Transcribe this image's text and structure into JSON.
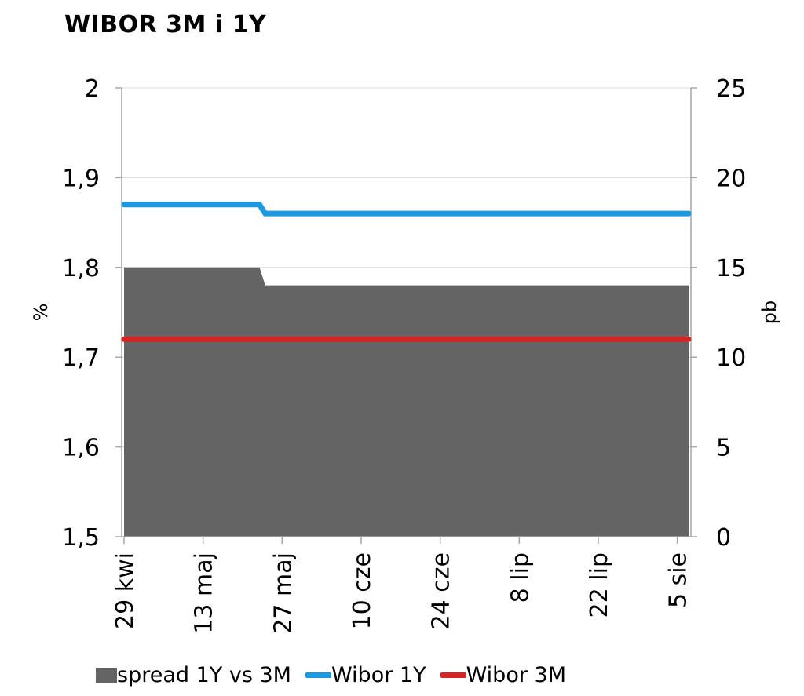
{
  "chart_data": {
    "type": "line",
    "title": "WIBOR 3M i 1Y",
    "ylabel": "%",
    "y2label": "pb",
    "ylim": [
      1.5,
      2.0
    ],
    "y2lim": [
      0,
      25
    ],
    "y_ticks": [
      "1,5",
      "1,6",
      "1,7",
      "1,8",
      "1,9",
      "2"
    ],
    "y2_ticks": [
      "0",
      "5",
      "10",
      "15",
      "20",
      "25"
    ],
    "x_tick_labels": [
      "29 kwi",
      "13 maj",
      "27 maj",
      "10 cze",
      "24 cze",
      "8 lip",
      "22 lip",
      "5 sie"
    ],
    "x_range_days": [
      0,
      100
    ],
    "x_tick_days": [
      0,
      14,
      28,
      42,
      56,
      70,
      84,
      98
    ],
    "grid": true,
    "legend_position": "bottom",
    "series": [
      {
        "name": "spread 1Y vs 3M",
        "type": "area",
        "axis": "right",
        "color": "#646464",
        "x_days": [
          0,
          24,
          25,
          100
        ],
        "values": [
          15,
          15,
          14,
          14
        ]
      },
      {
        "name": "Wibor 1Y",
        "type": "line",
        "axis": "left",
        "color": "#1a9ae0",
        "x_days": [
          0,
          24,
          25,
          100
        ],
        "values": [
          1.87,
          1.87,
          1.86,
          1.86
        ]
      },
      {
        "name": "Wibor 3M",
        "type": "line",
        "axis": "left",
        "color": "#d42424",
        "x_days": [
          0,
          100
        ],
        "values": [
          1.72,
          1.72
        ]
      }
    ]
  }
}
